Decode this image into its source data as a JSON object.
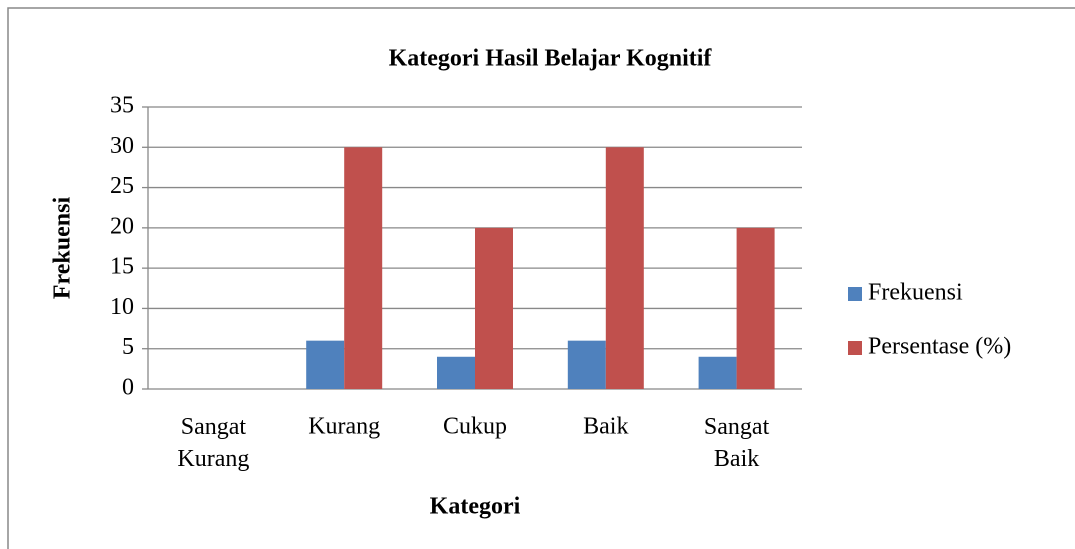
{
  "chart_data": {
    "type": "bar",
    "title": "Kategori Hasil Belajar Kognitif",
    "x_label": "Kategori",
    "y_label": "Frekuensi",
    "categories": [
      "Sangat Kurang",
      "Kurang",
      "Cukup",
      "Baik",
      "Sangat Baik"
    ],
    "series": [
      {
        "name": "Frekuensi",
        "color": "#4f81bd",
        "values": [
          0,
          6,
          4,
          6,
          4
        ]
      },
      {
        "name": "Persentase (%)",
        "color": "#c0504d",
        "values": [
          0,
          30,
          20,
          30,
          20
        ]
      }
    ],
    "ylim": [
      0,
      35
    ],
    "yticks": [
      0,
      5,
      10,
      15,
      20,
      25,
      30,
      35
    ],
    "grid": true,
    "legend": "right"
  }
}
